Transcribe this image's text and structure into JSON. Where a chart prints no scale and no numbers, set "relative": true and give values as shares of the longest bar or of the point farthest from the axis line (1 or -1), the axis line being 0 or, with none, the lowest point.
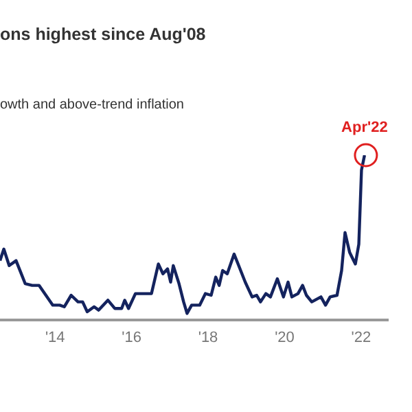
{
  "chart_data": {
    "type": "line",
    "title": "ons highest since Aug'08",
    "subtitle": "owth and above-trend inflation",
    "relative": true,
    "x": [
      2012.56,
      2012.66,
      2012.8,
      2012.98,
      2013.1,
      2013.22,
      2013.4,
      2013.58,
      2013.76,
      2013.94,
      2014.12,
      2014.24,
      2014.42,
      2014.6,
      2014.72,
      2014.84,
      2015.02,
      2015.14,
      2015.38,
      2015.56,
      2015.74,
      2015.82,
      2015.92,
      2016.1,
      2016.34,
      2016.52,
      2016.7,
      2016.82,
      2016.94,
      2017.02,
      2017.09,
      2017.24,
      2017.36,
      2017.45,
      2017.57,
      2017.78,
      2017.93,
      2018.08,
      2018.2,
      2018.29,
      2018.38,
      2018.5,
      2018.68,
      2018.8,
      2018.97,
      2019.15,
      2019.27,
      2019.37,
      2019.51,
      2019.63,
      2019.81,
      2019.97,
      2020.09,
      2020.19,
      2020.35,
      2020.47,
      2020.57,
      2020.71,
      2020.95,
      2021.07,
      2021.19,
      2021.37,
      2021.49,
      2021.58,
      2021.7,
      2021.85,
      2021.94,
      2022.01,
      2022.09
    ],
    "series": [
      {
        "color": "#14235e",
        "values": [
          0.36,
          0.43,
          0.33,
          0.36,
          0.29,
          0.22,
          0.21,
          0.21,
          0.15,
          0.09,
          0.09,
          0.08,
          0.15,
          0.11,
          0.11,
          0.05,
          0.08,
          0.06,
          0.12,
          0.07,
          0.07,
          0.12,
          0.07,
          0.16,
          0.16,
          0.16,
          0.34,
          0.28,
          0.31,
          0.23,
          0.33,
          0.22,
          0.11,
          0.04,
          0.09,
          0.09,
          0.16,
          0.15,
          0.26,
          0.21,
          0.3,
          0.28,
          0.4,
          0.33,
          0.23,
          0.14,
          0.15,
          0.11,
          0.16,
          0.14,
          0.25,
          0.14,
          0.23,
          0.14,
          0.16,
          0.21,
          0.15,
          0.11,
          0.14,
          0.09,
          0.14,
          0.15,
          0.3,
          0.53,
          0.41,
          0.34,
          0.46,
          0.91,
          1.0
        ]
      }
    ],
    "xlim": [
      2012.56,
      2022.72
    ],
    "xticks": [
      {
        "value": 2014,
        "label": "'14"
      },
      {
        "value": 2016,
        "label": "'16"
      },
      {
        "value": 2018,
        "label": "'18"
      },
      {
        "value": 2020,
        "label": "'20"
      },
      {
        "value": 2022,
        "label": "'22"
      }
    ],
    "annotations": [
      {
        "text": "Apr'22",
        "x": 2022.09,
        "y": 1.0
      }
    ],
    "grid": false,
    "legend": false,
    "marker": "none",
    "line_style": "solid"
  }
}
